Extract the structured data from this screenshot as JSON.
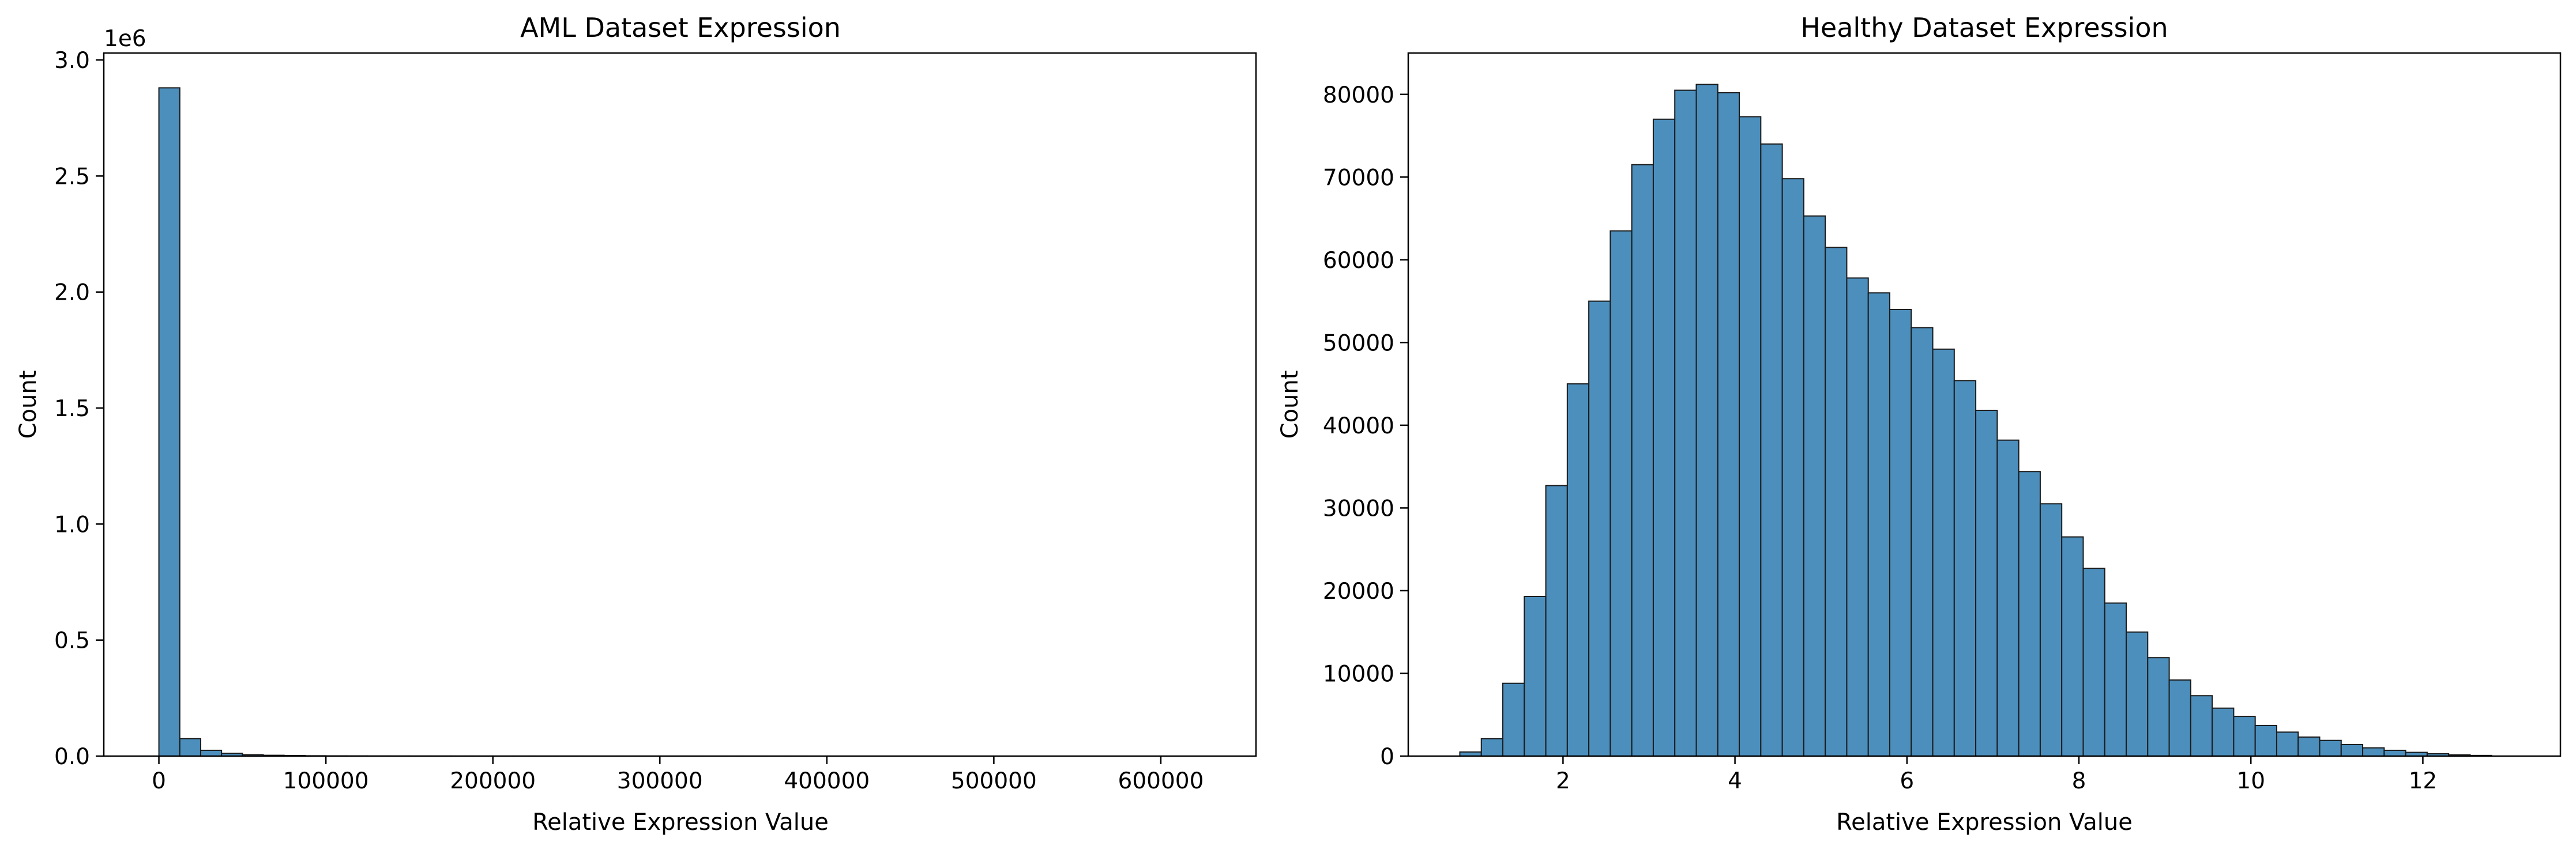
{
  "chart_data": [
    {
      "type": "bar",
      "title": "AML Dataset Expression",
      "xlabel": "Relative Expression Value",
      "ylabel": "Count",
      "xlim": [
        -33000,
        657000
      ],
      "ylim": [
        0,
        3030000
      ],
      "bar_color": "#4c8fbd",
      "edge_color": "#1a1a1a",
      "grid": false,
      "y_offset_label": "1e6",
      "x_ticks": [
        {
          "value": 0,
          "label": "0"
        },
        {
          "value": 100000,
          "label": "100000"
        },
        {
          "value": 200000,
          "label": "200000"
        },
        {
          "value": 300000,
          "label": "300000"
        },
        {
          "value": 400000,
          "label": "400000"
        },
        {
          "value": 500000,
          "label": "500000"
        },
        {
          "value": 600000,
          "label": "600000"
        }
      ],
      "y_ticks": [
        {
          "value": 0,
          "label": "0.0"
        },
        {
          "value": 500000,
          "label": "0.5"
        },
        {
          "value": 1000000,
          "label": "1.0"
        },
        {
          "value": 1500000,
          "label": "1.5"
        },
        {
          "value": 2000000,
          "label": "2.0"
        },
        {
          "value": 2500000,
          "label": "2.5"
        },
        {
          "value": 3000000,
          "label": "3.0"
        }
      ],
      "bin_start": 0,
      "bin_width": 12500,
      "values": [
        2880000,
        75000,
        25000,
        12000,
        6000,
        3500,
        2500,
        1500,
        1000,
        800,
        600,
        500,
        400,
        350,
        300,
        250,
        200,
        180,
        160,
        140,
        120,
        110,
        100,
        90,
        80,
        70,
        60,
        55,
        50,
        45,
        40,
        35,
        30,
        28,
        25,
        22,
        20,
        18,
        16,
        14,
        12,
        10,
        9,
        8,
        7,
        6,
        5,
        4,
        3,
        2
      ]
    },
    {
      "type": "bar",
      "title": "Healthy Dataset Expression",
      "xlabel": "Relative Expression Value",
      "ylabel": "Count",
      "xlim": [
        0.2,
        13.6
      ],
      "ylim": [
        0,
        85000
      ],
      "bar_color": "#4c8fbd",
      "edge_color": "#1a1a1a",
      "grid": false,
      "x_ticks": [
        {
          "value": 2,
          "label": "2"
        },
        {
          "value": 4,
          "label": "4"
        },
        {
          "value": 6,
          "label": "6"
        },
        {
          "value": 8,
          "label": "8"
        },
        {
          "value": 10,
          "label": "10"
        },
        {
          "value": 12,
          "label": "12"
        }
      ],
      "y_ticks": [
        {
          "value": 0,
          "label": "0"
        },
        {
          "value": 10000,
          "label": "10000"
        },
        {
          "value": 20000,
          "label": "20000"
        },
        {
          "value": 30000,
          "label": "30000"
        },
        {
          "value": 40000,
          "label": "40000"
        },
        {
          "value": 50000,
          "label": "50000"
        },
        {
          "value": 60000,
          "label": "60000"
        },
        {
          "value": 70000,
          "label": "70000"
        },
        {
          "value": 80000,
          "label": "80000"
        }
      ],
      "bin_start": 0.8,
      "bin_width": 0.25,
      "values": [
        500,
        2100,
        8800,
        19300,
        32700,
        45000,
        55000,
        63500,
        71500,
        77000,
        80500,
        81200,
        80200,
        77300,
        74000,
        69800,
        65300,
        61500,
        57800,
        56000,
        54000,
        51800,
        49200,
        45400,
        41800,
        38200,
        34400,
        30500,
        26500,
        22700,
        18500,
        15000,
        11900,
        9200,
        7300,
        5800,
        4800,
        3700,
        2900,
        2300,
        1900,
        1400,
        1000,
        700,
        450,
        280,
        150,
        80
      ]
    }
  ]
}
